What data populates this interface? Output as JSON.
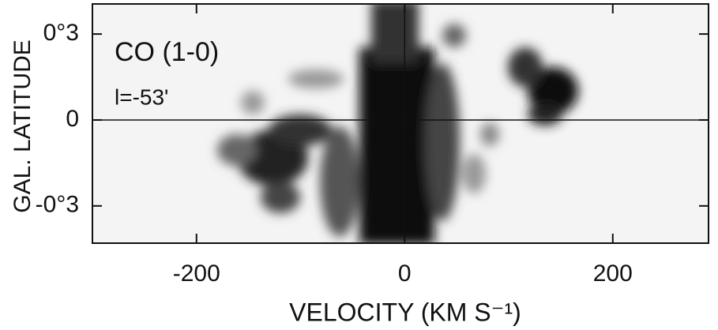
{
  "chart_data": {
    "type": "heatmap",
    "annotations": [
      "CO (1-0)",
      "l=-53'"
    ],
    "x_label": "VELOCITY (KM S⁻¹)",
    "y_label": "GAL. LATITUDE",
    "xlim": [
      -300,
      292
    ],
    "ylim": [
      -0.43,
      0.405
    ],
    "xticks": [
      -200,
      0,
      200
    ],
    "yticks": [
      {
        "value": 0.3,
        "label": "0°3"
      },
      0,
      {
        "value": -0.3,
        "label": "-0°3"
      }
    ],
    "zero_lines": true
  }
}
